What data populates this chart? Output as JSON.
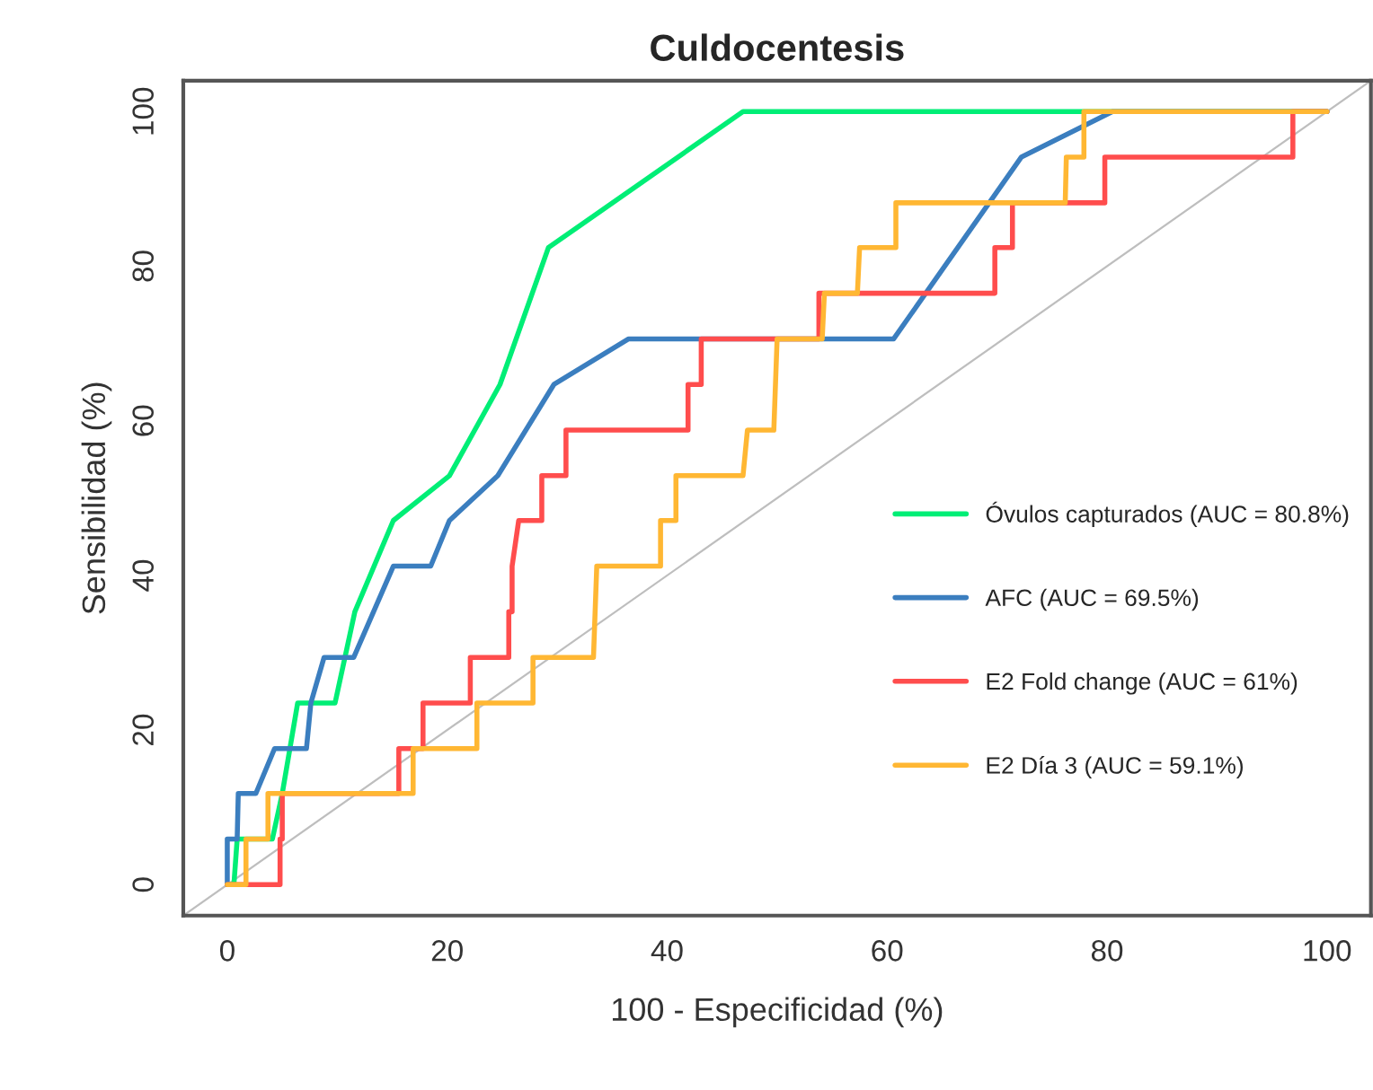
{
  "chart_data": {
    "type": "line",
    "title": "Culdocentesis",
    "xlabel": "100 - Especificidad (%)",
    "ylabel": "Sensibilidad (%)",
    "xlim": [
      -4,
      104
    ],
    "ylim": [
      -4,
      104
    ],
    "xticks": [
      0,
      20,
      40,
      60,
      80,
      100
    ],
    "yticks": [
      0,
      20,
      40,
      60,
      80,
      100
    ],
    "grid": false,
    "legend": "right",
    "marker": "none",
    "line_style": "solid",
    "series": [
      {
        "color": "#bebebe",
        "x": [
          -4,
          104
        ],
        "values": [
          -4,
          104
        ]
      },
      {
        "name": "Óvulos capturados (AUC = 80.8%)",
        "color": "#00ee76",
        "x": [
          0,
          0.6,
          0.9,
          4.1,
          5,
          6.4,
          9.8,
          11.6,
          15.1,
          20.2,
          24.8,
          29.2,
          46.9,
          100
        ],
        "values": [
          0,
          0,
          5.9,
          5.9,
          11.8,
          23.5,
          23.5,
          35.3,
          47.1,
          52.9,
          64.7,
          82.4,
          100,
          100
        ]
      },
      {
        "name": "AFC (AUC = 69.5%)",
        "color": "#3b7ebf",
        "x": [
          0,
          0,
          0.9,
          1,
          2.6,
          4.3,
          7.2,
          7.6,
          8.8,
          11.5,
          15.1,
          18.5,
          20.2,
          24.6,
          29.7,
          36.5,
          60.6,
          72.2,
          80.5,
          100
        ],
        "values": [
          0,
          5.9,
          5.9,
          11.8,
          11.8,
          17.6,
          17.6,
          23.5,
          29.4,
          29.4,
          41.2,
          41.2,
          47.1,
          52.9,
          64.7,
          70.6,
          70.6,
          94.1,
          100,
          100
        ]
      },
      {
        "name": "E2 Fold change (AUC = 61%)",
        "color": "#ff4d4d",
        "x": [
          0,
          4.8,
          4.8,
          5,
          5,
          15.6,
          15.6,
          17.8,
          17.8,
          22.1,
          22.1,
          25.6,
          25.6,
          25.9,
          25.9,
          26.5,
          28.6,
          28.6,
          30.8,
          30.8,
          41.9,
          41.9,
          43.1,
          43.1,
          53.8,
          53.8,
          69.8,
          69.8,
          71.4,
          71.4,
          79.8,
          79.8,
          96.9,
          96.9,
          100
        ],
        "values": [
          0,
          0,
          5.9,
          5.9,
          11.8,
          11.8,
          17.6,
          17.6,
          23.5,
          23.5,
          29.4,
          29.4,
          35.3,
          35.3,
          41.2,
          47.1,
          47.1,
          52.9,
          52.9,
          58.8,
          58.8,
          64.7,
          64.7,
          70.6,
          70.6,
          76.5,
          76.5,
          82.4,
          82.4,
          88.2,
          88.2,
          94.1,
          94.1,
          100,
          100
        ]
      },
      {
        "name": "E2 Día 3 (AUC = 59.1%)",
        "color": "#ffb733",
        "x": [
          0,
          1.7,
          1.7,
          3.7,
          3.7,
          16.9,
          16.9,
          22.7,
          22.7,
          27.8,
          27.8,
          33.3,
          33.6,
          39.4,
          39.4,
          40.8,
          40.8,
          46.9,
          47.3,
          49.7,
          50,
          54.1,
          54.3,
          57.3,
          57.5,
          60.8,
          60.8,
          76.2,
          76.3,
          77.9,
          77.9,
          100
        ],
        "values": [
          0,
          0,
          5.9,
          5.9,
          11.8,
          11.8,
          17.6,
          17.6,
          23.5,
          23.5,
          29.4,
          29.4,
          41.2,
          41.2,
          47.1,
          47.1,
          52.9,
          52.9,
          58.8,
          58.8,
          70.6,
          70.6,
          76.5,
          76.5,
          82.4,
          82.4,
          88.2,
          88.2,
          94.1,
          94.1,
          100,
          100
        ]
      }
    ]
  }
}
